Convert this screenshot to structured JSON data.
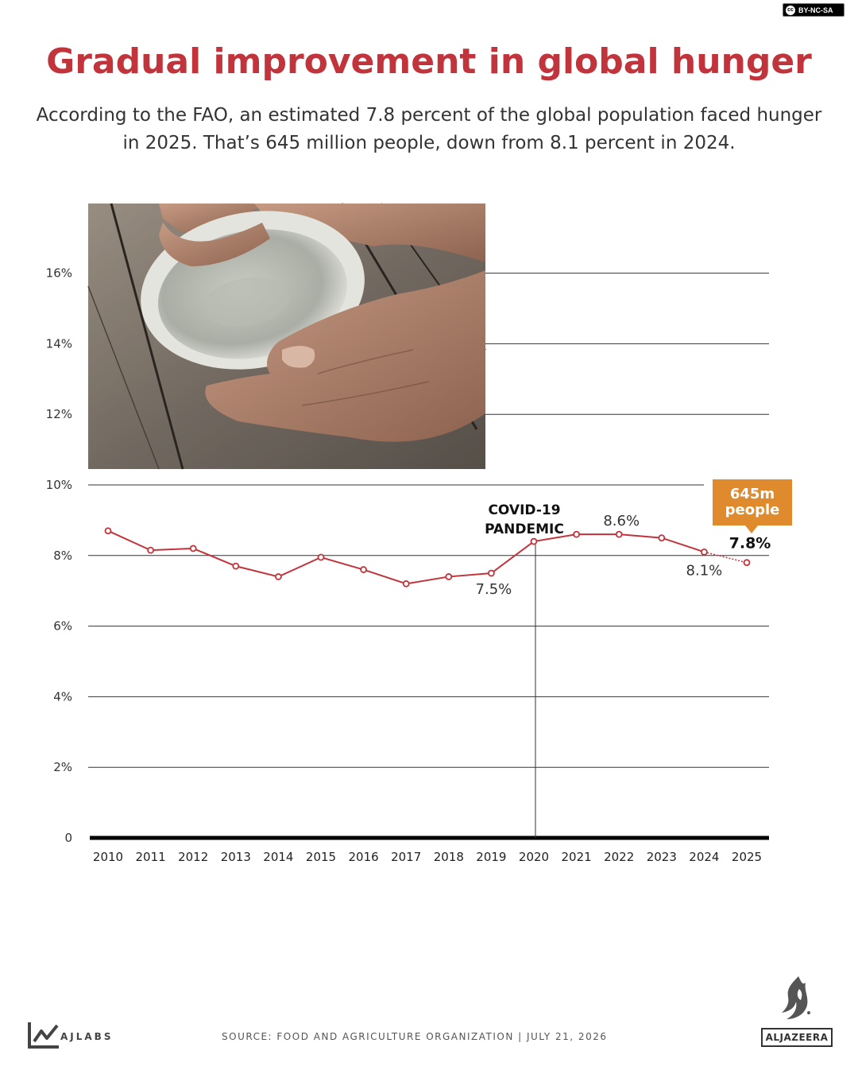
{
  "license": {
    "text": "BY-NC-SA",
    "icon": "cc-icon"
  },
  "title": "Gradual improvement in global hunger",
  "subtitle": "According to the FAO, an estimated 7.8 percent of the global population faced hunger in 2025. That’s 645 million people, down from 8.1 percent in 2024.",
  "photo": {
    "subject": "hands holding an empty metal bowl on a wooden table"
  },
  "footer": {
    "brand": "AJLABS",
    "source": "SOURCE:  FOOD AND AGRICULTURE ORGANIZATION  |  JULY 21, 2026",
    "logo_text": "ALJAZEERA"
  },
  "colors": {
    "title": "#c1343c",
    "line": "#c1343c",
    "callout": "#e08a2e"
  },
  "chart_data": {
    "type": "line",
    "x": [
      2010,
      2011,
      2012,
      2013,
      2014,
      2015,
      2016,
      2017,
      2018,
      2019,
      2020,
      2021,
      2022,
      2023,
      2024,
      2025
    ],
    "x_labels": [
      "2010",
      "2011",
      "2012",
      "2013",
      "2014",
      "2015",
      "2016",
      "2017",
      "2018",
      "2019",
      "2020",
      "2021",
      "2022",
      "2023",
      "2024",
      "2025"
    ],
    "series": [
      {
        "values": [
          8.7,
          8.15,
          8.2,
          7.7,
          7.4,
          7.95,
          7.6,
          7.2,
          7.4,
          7.5,
          8.4,
          8.6,
          8.6,
          8.5,
          8.1,
          7.8
        ]
      }
    ],
    "projected_from_index": 14,
    "ylim": [
      0,
      16
    ],
    "yticks": [
      0,
      2,
      4,
      6,
      8,
      10,
      12,
      14,
      16
    ],
    "ytick_labels": [
      "0",
      "2%",
      "4%",
      "6%",
      "8%",
      "10%",
      "12%",
      "14%",
      "16%"
    ],
    "grid": true,
    "annotations": {
      "event": {
        "x": 2020,
        "label_lines": [
          "COVID-19",
          "PANDEMIC"
        ]
      },
      "point_labels": [
        {
          "x": 2019,
          "text": "7.5%",
          "bold": false
        },
        {
          "x": 2022,
          "text": "8.6%",
          "bold": false
        },
        {
          "x": 2024,
          "text": "8.1%",
          "bold": false
        },
        {
          "x": 2025,
          "text": "7.8%",
          "bold": true
        }
      ],
      "callout": {
        "x": 2025,
        "lines": [
          "645m",
          "people"
        ]
      }
    }
  }
}
